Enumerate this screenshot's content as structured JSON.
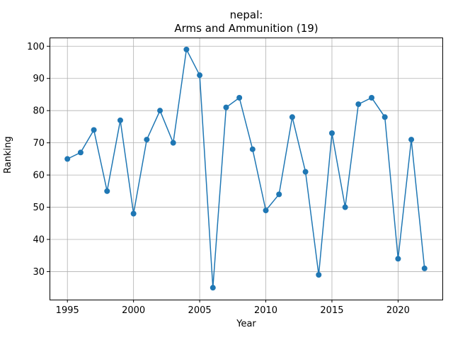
{
  "chart_data": {
    "type": "line",
    "title": "nepal:",
    "subtitle": "Arms and Ammunition (19)",
    "xlabel": "Year",
    "ylabel": "Ranking",
    "x": [
      1995,
      1996,
      1997,
      1998,
      1999,
      2000,
      2001,
      2002,
      2003,
      2004,
      2005,
      2006,
      2007,
      2008,
      2009,
      2010,
      2011,
      2012,
      2013,
      2014,
      2015,
      2016,
      2017,
      2018,
      2019,
      2020,
      2021,
      2022
    ],
    "series": [
      {
        "values": [
          65,
          67,
          74,
          55,
          77,
          48,
          71,
          80,
          70,
          99,
          91,
          25,
          81,
          84,
          68,
          49,
          54,
          78,
          61,
          29,
          73,
          50,
          82,
          84,
          78,
          34,
          71,
          31
        ],
        "color": "#1f77b4",
        "marker": "circle"
      }
    ],
    "xlim": [
      1993.65,
      2023.35
    ],
    "ylim": [
      21.3,
      102.7
    ],
    "xticks": [
      1995,
      2000,
      2005,
      2010,
      2015,
      2020
    ],
    "yticks": [
      30,
      40,
      50,
      60,
      70,
      80,
      90,
      100
    ],
    "grid": true,
    "legend": "none"
  }
}
